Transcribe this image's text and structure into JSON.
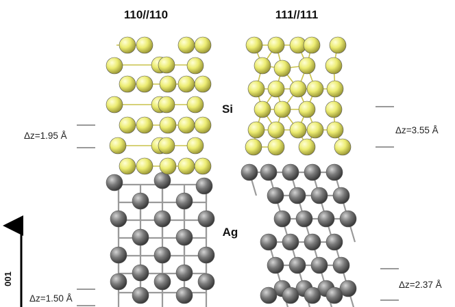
{
  "panels": [
    {
      "title": "110//110",
      "interface_label": "Δz=1.95 Å",
      "bottom_label": "Δz=1.50 Å"
    },
    {
      "title": "111//111",
      "interface_label": "Δz=3.55 Å",
      "bottom_label": "Δz=2.37 Å"
    }
  ],
  "labels": {
    "si": "Si",
    "ag": "Ag"
  },
  "axis": {
    "label": "001"
  },
  "colors": {
    "si": "#ecec72",
    "ag": "#6f6f6f",
    "text": "#111111"
  }
}
